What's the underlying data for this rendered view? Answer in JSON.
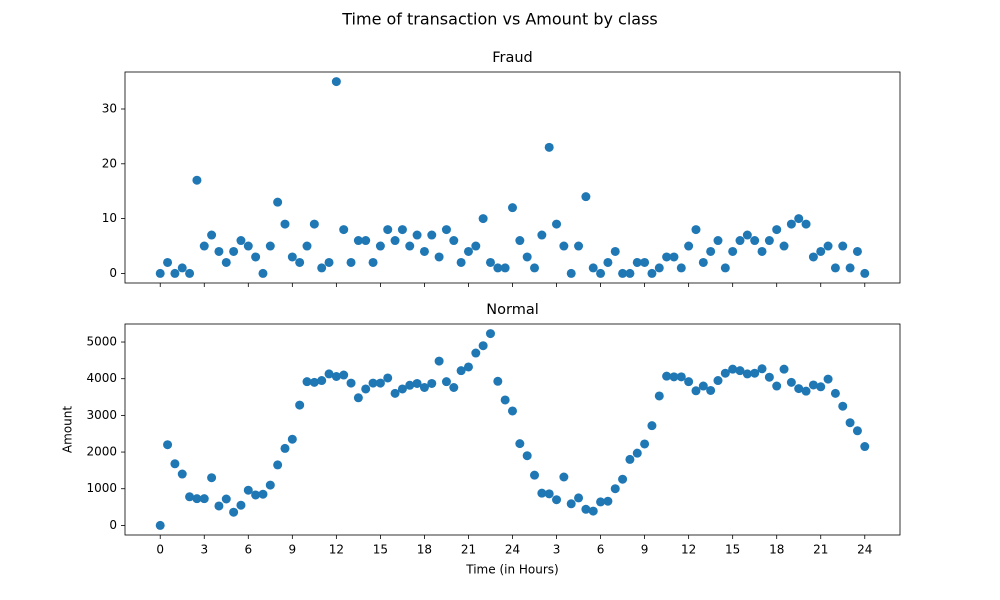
{
  "title": "Time of transaction vs Amount by class",
  "chart_data": [
    {
      "type": "scatter",
      "title": "Fraud",
      "color": "#1f77b4",
      "grid": false,
      "x": [
        0,
        0.5,
        1,
        1.5,
        2,
        2.5,
        3,
        3.5,
        4,
        4.5,
        5,
        5.5,
        6,
        6.5,
        7,
        7.5,
        8,
        8.5,
        9,
        9.5,
        10,
        10.5,
        11,
        11.5,
        12,
        12.5,
        13,
        13.5,
        14,
        14.5,
        15,
        15.5,
        16,
        16.5,
        17,
        17.5,
        18,
        18.5,
        19,
        19.5,
        20,
        20.5,
        21,
        21.5,
        22,
        22.5,
        23,
        23.5,
        24,
        24.5,
        25,
        25.5,
        26,
        26.5,
        27,
        27.5,
        28,
        28.5,
        29,
        29.5,
        30,
        30.5,
        31,
        31.5,
        32,
        32.5,
        33,
        33.5,
        34,
        34.5,
        35,
        35.5,
        36,
        36.5,
        37,
        37.5,
        38,
        38.5,
        39,
        39.5,
        40,
        40.5,
        41,
        41.5,
        42,
        42.5,
        43,
        43.5,
        44,
        44.5,
        45,
        45.5,
        46,
        46.5,
        47,
        47.5,
        48
      ],
      "values": [
        0,
        2,
        0,
        1,
        0,
        17,
        5,
        7,
        4,
        2,
        4,
        6,
        5,
        3,
        0,
        5,
        13,
        9,
        3,
        2,
        5,
        9,
        1,
        2,
        35,
        8,
        2,
        6,
        6,
        2,
        5,
        8,
        6,
        8,
        5,
        7,
        4,
        7,
        3,
        8,
        6,
        2,
        4,
        5,
        10,
        2,
        1,
        1,
        12,
        6,
        3,
        1,
        7,
        23,
        9,
        5,
        0,
        5,
        14,
        1,
        0,
        2,
        4,
        0,
        0,
        2,
        2,
        0,
        1,
        3,
        3,
        1,
        5,
        8,
        2,
        4,
        6,
        1,
        4,
        6,
        7,
        6,
        4,
        6,
        8,
        5,
        9,
        10,
        9,
        3,
        4,
        5,
        1,
        5,
        1,
        4,
        0
      ],
      "xlim": [
        -2.4,
        50.4
      ],
      "ylim": [
        -1.75,
        36.75
      ],
      "xticks": [
        0,
        3,
        6,
        9,
        12,
        15,
        18,
        21,
        24,
        27,
        30,
        33,
        36,
        39,
        42,
        45,
        48
      ],
      "yticks": [
        0,
        10,
        20,
        30
      ]
    },
    {
      "type": "scatter",
      "title": "Normal",
      "color": "#1f77b4",
      "grid": false,
      "xlabel": "Time (in Hours)",
      "ylabel": "Amount",
      "x": [
        0,
        0.5,
        1,
        1.5,
        2,
        2.5,
        3,
        3.5,
        4,
        4.5,
        5,
        5.5,
        6,
        6.5,
        7,
        7.5,
        8,
        8.5,
        9,
        9.5,
        10,
        10.5,
        11,
        11.5,
        12,
        12.5,
        13,
        13.5,
        14,
        14.5,
        15,
        15.5,
        16,
        16.5,
        17,
        17.5,
        18,
        18.5,
        19,
        19.5,
        20,
        20.5,
        21,
        21.5,
        22,
        22.5,
        23,
        23.5,
        24,
        24.5,
        25,
        25.5,
        26,
        26.5,
        27,
        27.5,
        28,
        28.5,
        29,
        29.5,
        30,
        30.5,
        31,
        31.5,
        32,
        32.5,
        33,
        33.5,
        34,
        34.5,
        35,
        35.5,
        36,
        36.5,
        37,
        37.5,
        38,
        38.5,
        39,
        39.5,
        40,
        40.5,
        41,
        41.5,
        42,
        42.5,
        43,
        43.5,
        44,
        44.5,
        45,
        45.5,
        46,
        46.5,
        47,
        47.5,
        48
      ],
      "values": [
        0,
        2200,
        1680,
        1400,
        780,
        730,
        730,
        1300,
        530,
        720,
        360,
        550,
        960,
        830,
        850,
        1100,
        1650,
        2100,
        2350,
        3280,
        3920,
        3900,
        3950,
        4130,
        4060,
        4100,
        3880,
        3480,
        3720,
        3880,
        3880,
        4020,
        3600,
        3720,
        3820,
        3870,
        3760,
        3870,
        4480,
        3920,
        3760,
        4220,
        4320,
        4700,
        4900,
        5230,
        3930,
        3420,
        3120,
        2230,
        1900,
        1370,
        880,
        860,
        700,
        1320,
        590,
        750,
        440,
        390,
        640,
        660,
        1000,
        1260,
        1800,
        1970,
        2220,
        2720,
        3530,
        4070,
        4050,
        4050,
        3920,
        3670,
        3800,
        3680,
        3950,
        4150,
        4260,
        4220,
        4130,
        4150,
        4270,
        4040,
        3800,
        4260,
        3900,
        3730,
        3660,
        3830,
        3780,
        3990,
        3600,
        3250,
        2800,
        2580,
        2150
      ],
      "xlim": [
        -2.4,
        50.4
      ],
      "ylim": [
        -261.5,
        5491.5
      ],
      "xticks": [
        0,
        3,
        6,
        9,
        12,
        15,
        18,
        21,
        24,
        {
          "value": 27,
          "label": "3"
        },
        {
          "value": 30,
          "label": "6"
        },
        {
          "value": 33,
          "label": "9"
        },
        {
          "value": 36,
          "label": "12"
        },
        {
          "value": 39,
          "label": "15"
        },
        {
          "value": 42,
          "label": "18"
        },
        {
          "value": 45,
          "label": "21"
        },
        {
          "value": 48,
          "label": "24"
        }
      ],
      "yticks": [
        0,
        1000,
        2000,
        3000,
        4000,
        5000
      ]
    }
  ]
}
